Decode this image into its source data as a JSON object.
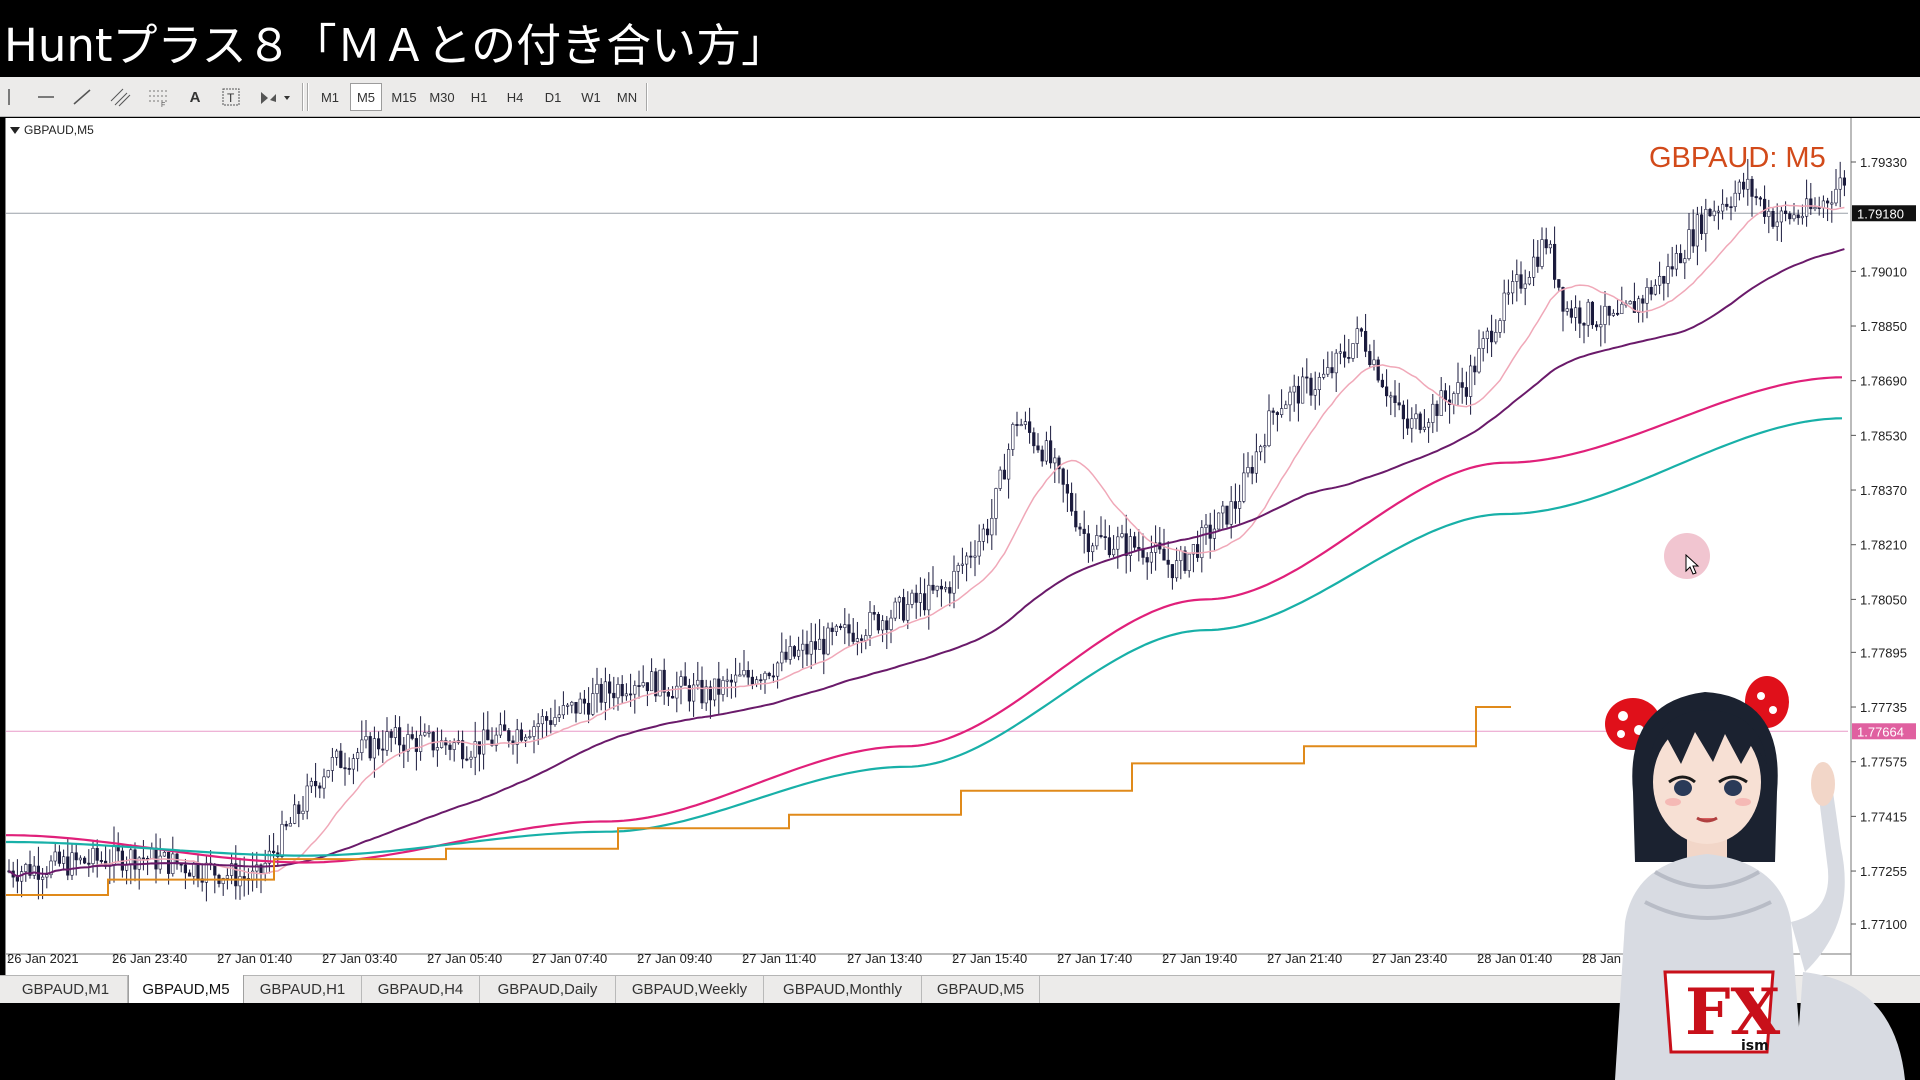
{
  "title": "Huntプラス８「ＭＡとの付き合い方」",
  "toolbar": {
    "timeframes": [
      "M1",
      "M5",
      "M15",
      "M30",
      "H1",
      "H4",
      "D1",
      "W1",
      "MN"
    ],
    "active_timeframe": "M5"
  },
  "chart": {
    "symbol_tag": "GBPAUD,M5",
    "watermark": "GBPAUD: M5",
    "price_labels": [
      "1.79330",
      "1.79010",
      "1.78850",
      "1.78690",
      "1.78530",
      "1.78370",
      "1.78210",
      "1.78050",
      "1.77895",
      "1.77735",
      "1.77575",
      "1.77415",
      "1.77255",
      "1.77100"
    ],
    "bid_price": "1.79180",
    "line_price": "1.77664",
    "time_labels": [
      "26 Jan 2021",
      "26 Jan 23:40",
      "27 Jan 01:40",
      "27 Jan 03:40",
      "27 Jan 05:40",
      "27 Jan 07:40",
      "27 Jan 09:40",
      "27 Jan 11:40",
      "27 Jan 13:40",
      "27 Jan 15:40",
      "27 Jan 17:40",
      "27 Jan 19:40",
      "27 Jan 21:40",
      "27 Jan 23:40",
      "28 Jan 01:40",
      "28 Jan 03:40"
    ],
    "colors": {
      "candle": "#1a1a3c",
      "ma_fast": "#f0a8b8",
      "ma_mid": "#6a1a6a",
      "ma_slow1": "#e0207a",
      "ma_slow2": "#18b0a8",
      "step": "#e08a1a",
      "bid_label_bg": "#111111",
      "line_label_bg": "#e060a0"
    }
  },
  "tabs": [
    "GBPAUD,M1",
    "GBPAUD,M5",
    "GBPAUD,H1",
    "GBPAUD,H4",
    "GBPAUD,Daily",
    "GBPAUD,Weekly",
    "GBPAUD,Monthly",
    "GBPAUD,M5"
  ],
  "active_tab": 1,
  "avatar": {
    "badge_text": "FX",
    "badge_sub": "ism"
  }
}
